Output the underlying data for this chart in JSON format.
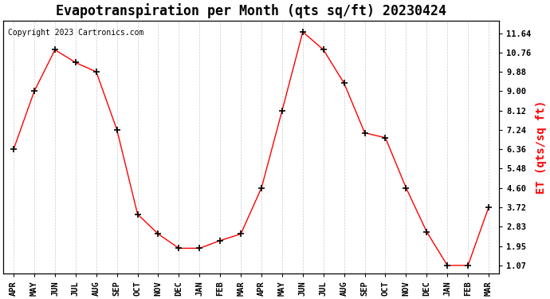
{
  "title": "Evapotranspiration per Month (qts sq/ft) 20230424",
  "ylabel": "ET (qts/sq ft)",
  "copyright": "Copyright 2023 Cartronics.com",
  "months": [
    "APR",
    "MAY",
    "JUN",
    "JUL",
    "AUG",
    "SEP",
    "OCT",
    "NOV",
    "DEC",
    "JAN",
    "FEB",
    "MAR",
    "APR",
    "MAY",
    "JUN",
    "JUL",
    "AUG",
    "SEP",
    "OCT",
    "NOV",
    "DEC",
    "JAN",
    "FEB",
    "MAR"
  ],
  "values": [
    6.36,
    9.0,
    10.88,
    10.3,
    9.88,
    7.24,
    3.4,
    2.5,
    1.85,
    1.85,
    2.2,
    2.5,
    4.6,
    8.12,
    11.7,
    10.88,
    9.36,
    7.1,
    6.88,
    4.6,
    2.6,
    1.07,
    1.07,
    3.72
  ],
  "line_color": "#ff0000",
  "marker": "+",
  "marker_color": "#000000",
  "marker_size": 6,
  "grid_color": "#cccccc",
  "background_color": "#ffffff",
  "yticks": [
    1.07,
    1.95,
    2.83,
    3.72,
    4.6,
    5.48,
    6.36,
    7.24,
    8.12,
    9.0,
    9.88,
    10.76,
    11.64
  ],
  "ylim": [
    0.7,
    12.2
  ],
  "title_fontsize": 12,
  "ylabel_color": "#ff0000",
  "ylabel_fontsize": 10
}
